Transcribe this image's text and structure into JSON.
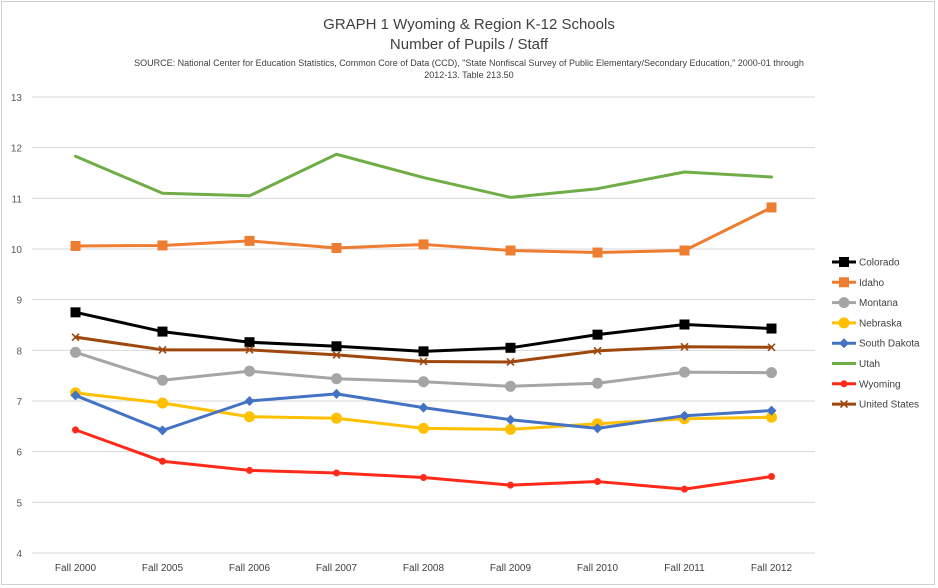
{
  "chart_data": {
    "type": "line",
    "title_line1": "GRAPH 1 Wyoming & Region K-12 Schools",
    "title_line2": "Number of Pupils / Staff",
    "source_line1": "SOURCE: National Center for Education Statistics, Common Core of Data (CCD), \"State Nonfiscal Survey of Public Elementary/Secondary Education,\" 2000-01 through",
    "source_line2": "2012-13. Table 213.50",
    "categories": [
      "Fall 2000",
      "Fall 2005",
      "Fall 2006",
      "Fall 2007",
      "Fall 2008",
      "Fall 2009",
      "Fall 2010",
      "Fall 2011",
      "Fall 2012"
    ],
    "ylim": [
      4,
      13
    ],
    "yticks": [
      4,
      5,
      6,
      7,
      8,
      9,
      10,
      11,
      12,
      13
    ],
    "grid": "horizontal",
    "legend_position": "right",
    "series": [
      {
        "name": "Colorado",
        "color": "#000000",
        "marker": "square",
        "values": [
          8.75,
          8.37,
          8.16,
          8.08,
          7.98,
          8.05,
          8.31,
          8.51,
          8.43
        ]
      },
      {
        "name": "Idaho",
        "color": "#ED7D31",
        "marker": "square",
        "values": [
          10.06,
          10.07,
          10.16,
          10.02,
          10.09,
          9.97,
          9.93,
          9.97,
          10.82
        ]
      },
      {
        "name": "Montana",
        "color": "#A5A5A5",
        "marker": "circle",
        "values": [
          7.96,
          7.41,
          7.59,
          7.44,
          7.38,
          7.29,
          7.35,
          7.57,
          7.56
        ]
      },
      {
        "name": "Nebraska",
        "color": "#FFC000",
        "marker": "circle",
        "values": [
          7.16,
          6.96,
          6.69,
          6.66,
          6.46,
          6.44,
          6.55,
          6.65,
          6.68
        ]
      },
      {
        "name": "South Dakota",
        "color": "#4472C4",
        "marker": "diamond",
        "values": [
          7.11,
          6.42,
          7.0,
          7.14,
          6.87,
          6.63,
          6.46,
          6.71,
          6.81
        ]
      },
      {
        "name": "Utah",
        "color": "#70AD47",
        "marker": "none",
        "values": [
          11.83,
          11.1,
          11.05,
          11.87,
          11.41,
          11.02,
          11.19,
          11.52,
          11.42
        ]
      },
      {
        "name": "Wyoming",
        "color": "#FF2A1A",
        "marker": "dot",
        "values": [
          6.43,
          5.81,
          5.63,
          5.58,
          5.49,
          5.34,
          5.41,
          5.26,
          5.51
        ]
      },
      {
        "name": "United States",
        "color": "#9E480E",
        "marker": "x",
        "values": [
          8.26,
          8.01,
          8.01,
          7.91,
          7.78,
          7.77,
          7.99,
          8.07,
          8.06
        ]
      }
    ]
  }
}
